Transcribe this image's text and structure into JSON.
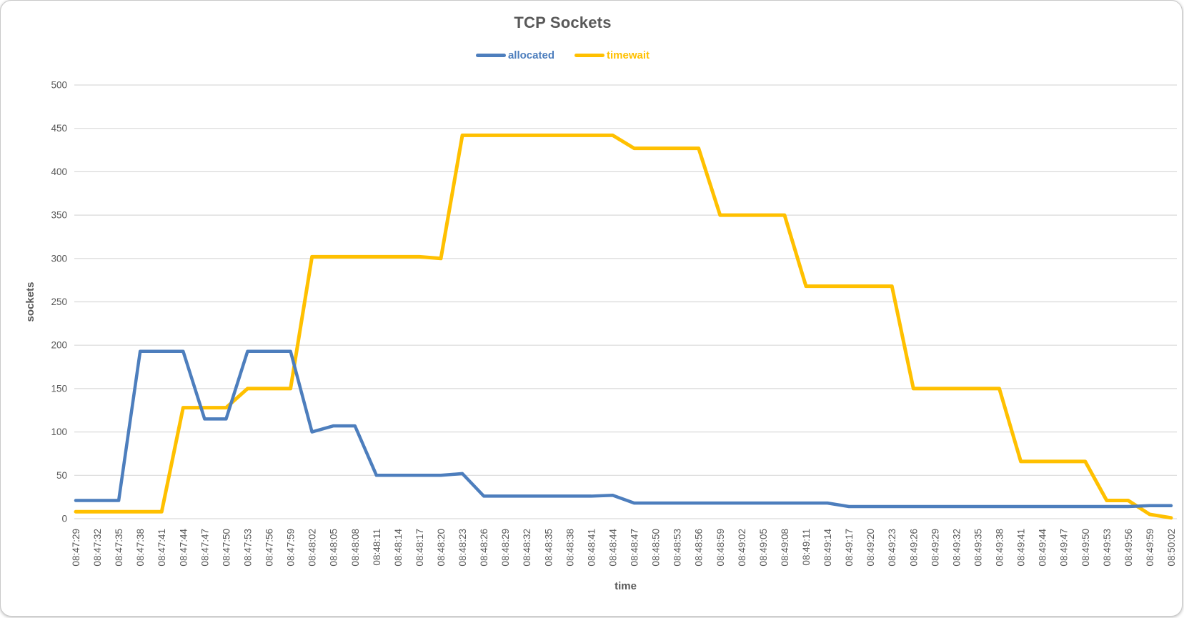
{
  "window": {
    "background_color": "#ffffff",
    "border_color": "#c9c9c9"
  },
  "chart_data": {
    "type": "line",
    "title": "TCP Sockets",
    "xlabel": "time",
    "ylabel": "sockets",
    "ylim": [
      0,
      500
    ],
    "ytick_step": 50,
    "grid": true,
    "legend_position": "top-center",
    "text_color": "#595959",
    "gridline_color": "#d9d9d9",
    "x": [
      "08:47:29",
      "08:47:32",
      "08:47:35",
      "08:47:38",
      "08:47:41",
      "08:47:44",
      "08:47:47",
      "08:47:50",
      "08:47:53",
      "08:47:56",
      "08:47:59",
      "08:48:02",
      "08:48:05",
      "08:48:08",
      "08:48:11",
      "08:48:14",
      "08:48:17",
      "08:48:20",
      "08:48:23",
      "08:48:26",
      "08:48:29",
      "08:48:32",
      "08:48:35",
      "08:48:38",
      "08:48:41",
      "08:48:44",
      "08:48:47",
      "08:48:50",
      "08:48:53",
      "08:48:56",
      "08:48:59",
      "08:49:02",
      "08:49:05",
      "08:49:08",
      "08:49:11",
      "08:49:14",
      "08:49:17",
      "08:49:20",
      "08:49:23",
      "08:49:26",
      "08:49:29",
      "08:49:32",
      "08:49:35",
      "08:49:38",
      "08:49:41",
      "08:49:44",
      "08:49:47",
      "08:49:50",
      "08:49:53",
      "08:49:56",
      "08:49:59",
      "08:50:02"
    ],
    "series": [
      {
        "name": "allocated",
        "color": "#4d7ebd",
        "values": [
          21,
          21,
          21,
          193,
          193,
          193,
          115,
          115,
          193,
          193,
          193,
          100,
          107,
          107,
          50,
          50,
          50,
          50,
          52,
          26,
          26,
          26,
          26,
          26,
          26,
          27,
          18,
          18,
          18,
          18,
          18,
          18,
          18,
          18,
          18,
          18,
          14,
          14,
          14,
          14,
          14,
          14,
          14,
          14,
          14,
          14,
          14,
          14,
          14,
          14,
          15,
          15
        ]
      },
      {
        "name": "timewait",
        "color": "#ffc000",
        "values": [
          8,
          8,
          8,
          8,
          8,
          128,
          128,
          128,
          150,
          150,
          150,
          302,
          302,
          302,
          302,
          302,
          302,
          300,
          442,
          442,
          442,
          442,
          442,
          442,
          442,
          442,
          427,
          427,
          427,
          427,
          350,
          350,
          350,
          350,
          268,
          268,
          268,
          268,
          268,
          150,
          150,
          150,
          150,
          150,
          66,
          66,
          66,
          66,
          21,
          21,
          5,
          1
        ]
      }
    ]
  }
}
